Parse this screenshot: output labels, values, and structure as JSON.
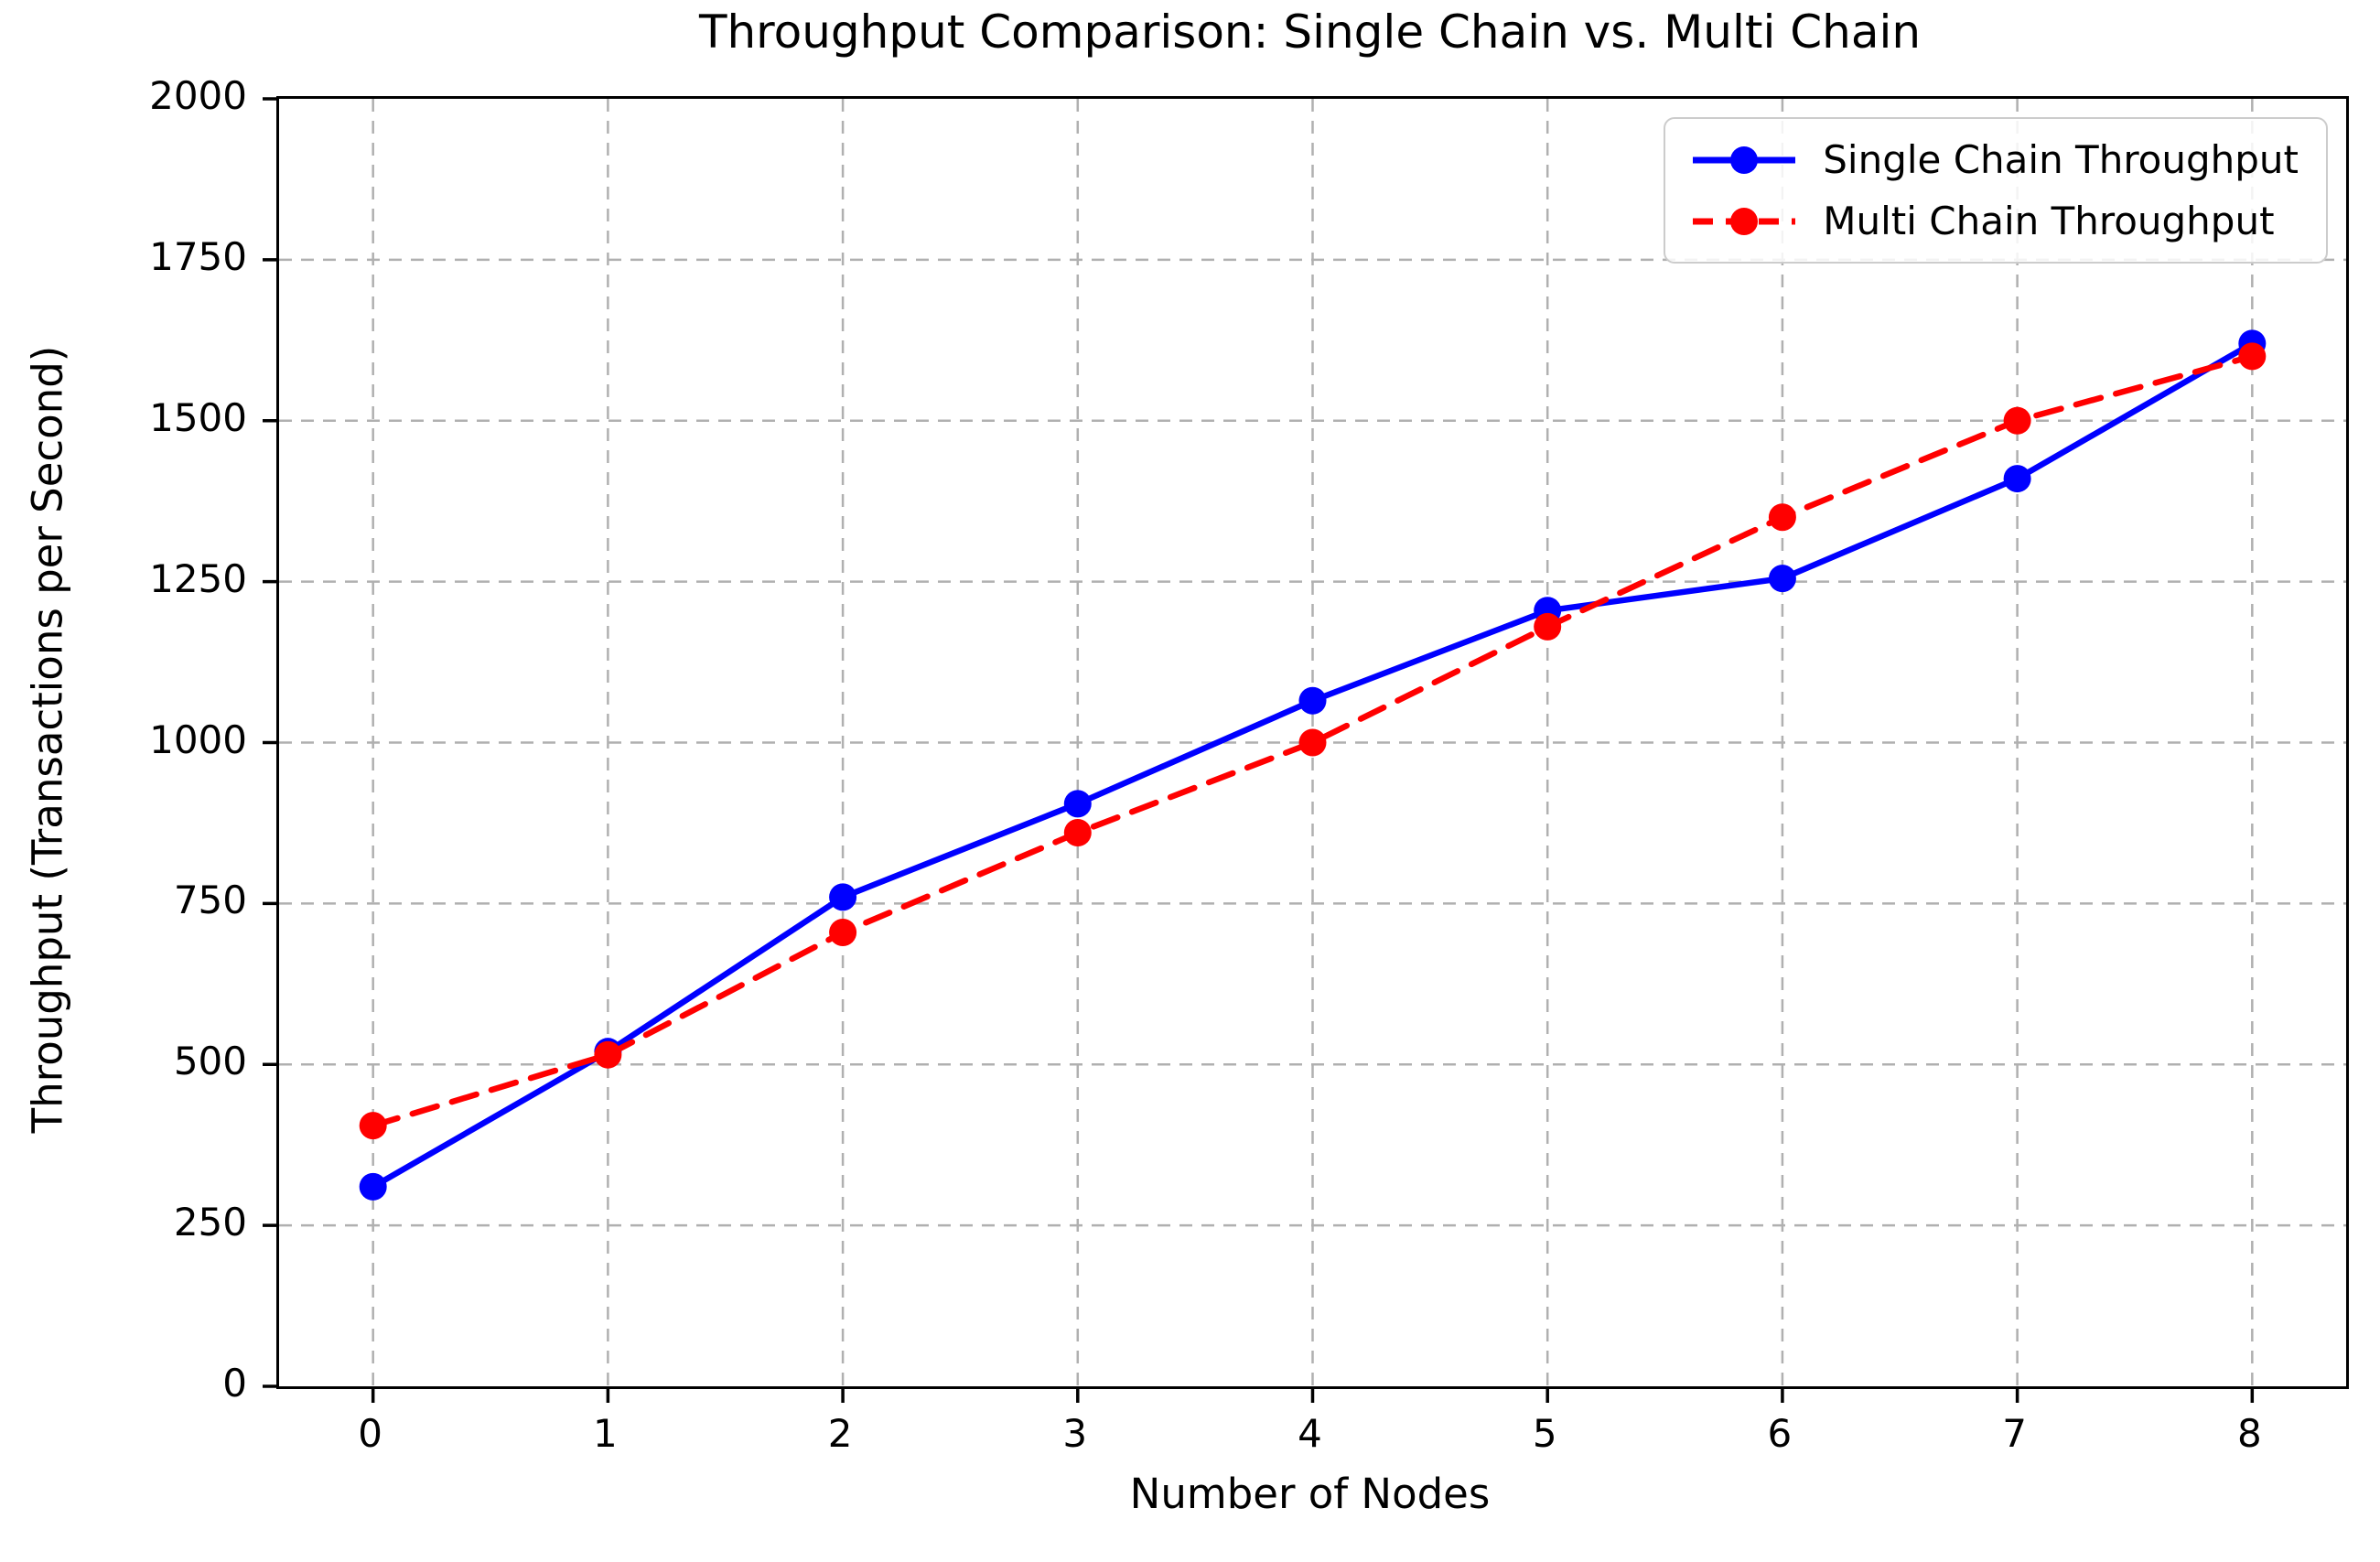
{
  "chart_data": {
    "type": "line",
    "title": "Throughput Comparison: Single Chain vs. Multi Chain",
    "xlabel": "Number of Nodes",
    "ylabel": "Throughput (Transactions per Second)",
    "x": [
      0,
      1,
      2,
      3,
      4,
      5,
      6,
      7,
      8
    ],
    "x_ticks": [
      "0",
      "1",
      "2",
      "3",
      "4",
      "5",
      "6",
      "7",
      "8"
    ],
    "y_ticks": [
      "0",
      "250",
      "500",
      "750",
      "1000",
      "1250",
      "1500",
      "1750",
      "2000"
    ],
    "y_tick_values": [
      0,
      250,
      500,
      750,
      1000,
      1250,
      1500,
      1750,
      2000
    ],
    "xlim": [
      -0.4,
      8.4
    ],
    "ylim": [
      0,
      2000
    ],
    "grid": true,
    "legend_position": "upper right",
    "series": [
      {
        "name": "Single Chain Throughput",
        "color": "#0000ff",
        "line_style": "solid",
        "marker": "circle",
        "values": [
          310,
          520,
          760,
          905,
          1065,
          1205,
          1255,
          1410,
          1620
        ]
      },
      {
        "name": "Multi Chain Throughput",
        "color": "#ff0000",
        "line_style": "dashed",
        "marker": "circle",
        "values": [
          405,
          515,
          705,
          860,
          1000,
          1180,
          1350,
          1500,
          1600
        ]
      }
    ],
    "style": {
      "grid_color": "#b0b0b0",
      "spine_color": "#000000",
      "text_color": "#000000",
      "background": "#ffffff"
    }
  }
}
